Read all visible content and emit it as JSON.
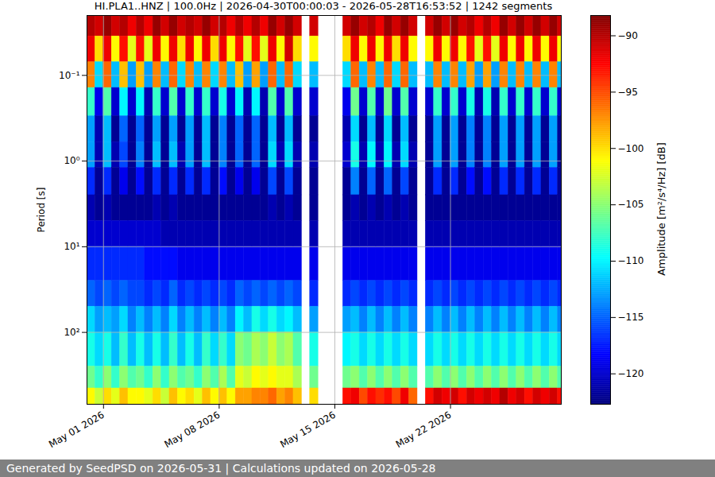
{
  "chart_data": {
    "type": "heatmap",
    "title": "HI.PLA1..HNZ | 100.0Hz | 2026-04-30T00:00:03 - 2026-05-28T16:53:52 | 1242 segments",
    "footer": "Generated by SeedPSD on 2026-05-31 | Calculations updated on 2026-05-28",
    "y_label": "Period [s]",
    "log": "y",
    "grid": true,
    "xlim": [
      "2026-04-30T00:00:03Z",
      "2026-05-28T16:53:52Z"
    ],
    "xticks": [
      {
        "value": "2026-05-01T00:00Z",
        "label": "May 01 2026"
      },
      {
        "value": "2026-05-08T00:00Z",
        "label": "May 08 2026"
      },
      {
        "value": "2026-05-15T00:00Z",
        "label": "May 15 2026"
      },
      {
        "value": "2026-05-22T00:00Z",
        "label": "May 22 2026"
      }
    ],
    "ylim": [
      690,
      0.02
    ],
    "yticks": [
      {
        "value": 0.1,
        "label": "10⁻¹"
      },
      {
        "value": 1,
        "label": "10⁰"
      },
      {
        "value": 10,
        "label": "10¹"
      },
      {
        "value": 100,
        "label": "10²"
      }
    ],
    "periods": [
      0.02,
      0.035,
      0.07,
      0.14,
      0.3,
      0.6,
      1.2,
      2.5,
      5,
      10,
      25,
      50,
      100,
      250,
      450,
      690
    ],
    "x": [
      "2026-04-30T00:00Z",
      "2026-04-30T12:00Z",
      "2026-05-01T00:00Z",
      "2026-05-01T12:00Z",
      "2026-05-02T00:00Z",
      "2026-05-02T12:00Z",
      "2026-05-03T00:00Z",
      "2026-05-03T12:00Z",
      "2026-05-04T00:00Z",
      "2026-05-04T12:00Z",
      "2026-05-05T00:00Z",
      "2026-05-05T12:00Z",
      "2026-05-06T00:00Z",
      "2026-05-06T12:00Z",
      "2026-05-07T00:00Z",
      "2026-05-07T12:00Z",
      "2026-05-08T00:00Z",
      "2026-05-08T12:00Z",
      "2026-05-09T00:00Z",
      "2026-05-09T12:00Z",
      "2026-05-10T00:00Z",
      "2026-05-10T12:00Z",
      "2026-05-11T00:00Z",
      "2026-05-11T12:00Z",
      "2026-05-12T00:00Z",
      "2026-05-12T12:00Z",
      "2026-05-13T00:00Z",
      "2026-05-13T12:00Z",
      "2026-05-14T00:00Z",
      "2026-05-14T12:00Z",
      "2026-05-15T00:00Z",
      "2026-05-15T12:00Z",
      "2026-05-16T00:00Z",
      "2026-05-16T12:00Z",
      "2026-05-17T00:00Z",
      "2026-05-17T12:00Z",
      "2026-05-18T00:00Z",
      "2026-05-18T12:00Z",
      "2026-05-19T00:00Z",
      "2026-05-19T12:00Z",
      "2026-05-20T00:00Z",
      "2026-05-20T12:00Z",
      "2026-05-21T00:00Z",
      "2026-05-21T12:00Z",
      "2026-05-22T00:00Z",
      "2026-05-22T12:00Z",
      "2026-05-23T00:00Z",
      "2026-05-23T12:00Z",
      "2026-05-24T00:00Z",
      "2026-05-24T12:00Z",
      "2026-05-25T00:00Z",
      "2026-05-25T12:00Z",
      "2026-05-26T00:00Z",
      "2026-05-26T12:00Z",
      "2026-05-27T00:00Z",
      "2026-05-27T12:00Z",
      "2026-05-28T00:00Z",
      "2026-05-28T12:00Z"
    ],
    "values": [
      [
        -90,
        -92,
        -97,
        -108,
        -113,
        -113,
        -117,
        -121,
        -120,
        -117,
        -115,
        -111,
        -109,
        -106,
        -101
      ],
      [
        -91,
        -100,
        -111,
        -119,
        -121,
        -121,
        -122,
        -122,
        -120,
        -117,
        -116,
        -113,
        -111,
        -108,
        -103
      ],
      [
        -89,
        -92,
        -96,
        -107,
        -112,
        -112,
        -117,
        -121,
        -120,
        -117,
        -115,
        -112,
        -109,
        -105,
        -100
      ],
      [
        -91,
        -101,
        -112,
        -120,
        -122,
        -121,
        -122,
        -122,
        -120,
        -117,
        -116,
        -113,
        -112,
        -108,
        -102
      ],
      [
        -90,
        -93,
        -99,
        -110,
        -115,
        -116,
        -119,
        -122,
        -120,
        -117,
        -115,
        -111,
        -108,
        -105,
        -99
      ],
      [
        -92,
        -102,
        -113,
        -120,
        -122,
        -122,
        -122,
        -122,
        -120,
        -117,
        -116,
        -114,
        -112,
        -107,
        -101
      ],
      [
        -90,
        -93,
        -99,
        -110,
        -115,
        -114,
        -118,
        -122,
        -120,
        -117,
        -116,
        -112,
        -109,
        -106,
        -101
      ],
      [
        -92,
        -102,
        -113,
        -121,
        -122,
        -122,
        -122,
        -122,
        -120,
        -118,
        -117,
        -114,
        -112,
        -108,
        -102
      ],
      [
        -89,
        -92,
        -97,
        -108,
        -113,
        -112,
        -117,
        -121,
        -120,
        -118,
        -116,
        -112,
        -109,
        -105,
        -100
      ],
      [
        -91,
        -101,
        -112,
        -120,
        -122,
        -122,
        -122,
        -122,
        -121,
        -118,
        -117,
        -114,
        -112,
        -108,
        -103
      ],
      [
        -89,
        -92,
        -96,
        -107,
        -113,
        -112,
        -117,
        -121,
        -121,
        -118,
        -115,
        -111,
        -108,
        -105,
        -99
      ],
      [
        -91,
        -100,
        -111,
        -120,
        -122,
        -121,
        -122,
        -122,
        -121,
        -119,
        -117,
        -114,
        -112,
        -107,
        -101
      ],
      [
        -90,
        -92,
        -97,
        -108,
        -113,
        -113,
        -117,
        -122,
        -121,
        -119,
        -116,
        -112,
        -109,
        -106,
        -100
      ],
      [
        -91,
        -101,
        -112,
        -120,
        -122,
        -122,
        -122,
        -122,
        -121,
        -119,
        -117,
        -114,
        -112,
        -108,
        -102
      ],
      [
        -89,
        -92,
        -97,
        -108,
        -112,
        -112,
        -117,
        -122,
        -121,
        -119,
        -116,
        -112,
        -108,
        -105,
        -99
      ],
      [
        -91,
        -100,
        -111,
        -120,
        -122,
        -122,
        -122,
        -122,
        -121,
        -119,
        -117,
        -114,
        -111,
        -107,
        -101
      ],
      [
        -90,
        -92,
        -97,
        -109,
        -114,
        -114,
        -118,
        -122,
        -121,
        -119,
        -116,
        -112,
        -108,
        -104,
        -99
      ],
      [
        -92,
        -101,
        -112,
        -120,
        -122,
        -122,
        -122,
        -122,
        -121,
        -119,
        -117,
        -114,
        -111,
        -107,
        -101
      ],
      [
        -90,
        -93,
        -99,
        -110,
        -115,
        -115,
        -119,
        -122,
        -121,
        -119,
        -115,
        -110,
        -105,
        -102,
        -98
      ],
      [
        -92,
        -102,
        -113,
        -121,
        -122,
        -122,
        -122,
        -122,
        -121,
        -119,
        -116,
        -112,
        -106,
        -103,
        -98
      ],
      [
        -90,
        -93,
        -98,
        -110,
        -115,
        -115,
        -119,
        -122,
        -121,
        -119,
        -115,
        -109,
        -104,
        -101,
        -97
      ],
      [
        -92,
        -102,
        -113,
        -121,
        -122,
        -122,
        -122,
        -122,
        -121,
        -119,
        -116,
        -111,
        -105,
        -102,
        -97
      ],
      [
        -89,
        -92,
        -96,
        -107,
        -112,
        -111,
        -116,
        -121,
        -121,
        -119,
        -115,
        -109,
        -103,
        -101,
        -96
      ],
      [
        -91,
        -101,
        -112,
        -120,
        -122,
        -121,
        -122,
        -122,
        -121,
        -119,
        -116,
        -111,
        -105,
        -102,
        -98
      ],
      [
        -89,
        -91,
        -96,
        -107,
        -112,
        -111,
        -116,
        -121,
        -121,
        -119,
        -115,
        -110,
        -104,
        -102,
        -97
      ],
      [
        -91,
        -100,
        -111,
        -120,
        -122,
        -121,
        -122,
        -122,
        -121,
        -119,
        -116,
        -112,
        -107,
        -104,
        -99
      ],
      null,
      [
        -91,
        -101,
        -112,
        -120,
        -122,
        -121,
        -122,
        -122,
        -121,
        -119,
        -117,
        -113,
        -109,
        -106,
        -100
      ],
      null,
      null,
      null,
      [
        -91,
        -100,
        -111,
        -119,
        -121,
        -120,
        -122,
        -122,
        -121,
        -119,
        -117,
        -113,
        -110,
        -106,
        -93
      ],
      [
        -89,
        -92,
        -96,
        -106,
        -111,
        -109,
        -114,
        -121,
        -121,
        -119,
        -116,
        -112,
        -109,
        -105,
        -92
      ],
      [
        -91,
        -101,
        -112,
        -120,
        -122,
        -121,
        -122,
        -122,
        -121,
        -119,
        -117,
        -114,
        -111,
        -107,
        -95
      ],
      [
        -90,
        -92,
        -97,
        -107,
        -112,
        -110,
        -115,
        -121,
        -121,
        -119,
        -116,
        -112,
        -109,
        -105,
        -93
      ],
      [
        -92,
        -101,
        -112,
        -120,
        -122,
        -121,
        -122,
        -122,
        -121,
        -119,
        -117,
        -114,
        -111,
        -107,
        -94
      ],
      [
        -89,
        -92,
        -96,
        -106,
        -111,
        -110,
        -115,
        -121,
        -121,
        -119,
        -116,
        -112,
        -109,
        -105,
        -93
      ],
      [
        -91,
        -100,
        -111,
        -120,
        -122,
        -121,
        -122,
        -122,
        -121,
        -119,
        -117,
        -114,
        -111,
        -107,
        -95
      ],
      [
        -89,
        -92,
        -96,
        -107,
        -112,
        -111,
        -116,
        -121,
        -121,
        -119,
        -116,
        -112,
        -109,
        -105,
        -92
      ],
      [
        -91,
        -101,
        -112,
        -120,
        -122,
        -121,
        -122,
        -122,
        -121,
        -119,
        -117,
        -114,
        -111,
        -107,
        -96
      ],
      null,
      [
        -91,
        -101,
        -112,
        -120,
        -122,
        -122,
        -122,
        -122,
        -121,
        -119,
        -117,
        -114,
        -111,
        -107,
        -93
      ],
      [
        -89,
        -92,
        -97,
        -108,
        -113,
        -113,
        -117,
        -122,
        -121,
        -119,
        -116,
        -112,
        -109,
        -105,
        -91
      ],
      [
        -91,
        -101,
        -112,
        -120,
        -122,
        -122,
        -122,
        -122,
        -121,
        -119,
        -117,
        -114,
        -111,
        -107,
        -92
      ],
      [
        -89,
        -92,
        -97,
        -108,
        -113,
        -113,
        -117,
        -122,
        -121,
        -119,
        -116,
        -112,
        -109,
        -105,
        -91
      ],
      [
        -91,
        -101,
        -112,
        -120,
        -122,
        -122,
        -122,
        -122,
        -121,
        -119,
        -117,
        -114,
        -111,
        -107,
        -93
      ],
      [
        -90,
        -93,
        -98,
        -109,
        -114,
        -114,
        -118,
        -122,
        -121,
        -119,
        -116,
        -112,
        -109,
        -105,
        -91
      ],
      [
        -92,
        -102,
        -113,
        -121,
        -122,
        -122,
        -122,
        -122,
        -121,
        -119,
        -117,
        -114,
        -111,
        -107,
        -92
      ],
      [
        -90,
        -93,
        -98,
        -109,
        -114,
        -114,
        -118,
        -122,
        -121,
        -119,
        -116,
        -112,
        -109,
        -105,
        -91
      ],
      [
        -92,
        -102,
        -113,
        -121,
        -122,
        -122,
        -122,
        -122,
        -121,
        -119,
        -117,
        -114,
        -111,
        -107,
        -92
      ],
      [
        -89,
        -92,
        -97,
        -108,
        -113,
        -113,
        -117,
        -122,
        -121,
        -119,
        -116,
        -112,
        -109,
        -105,
        -90
      ],
      [
        -91,
        -101,
        -112,
        -120,
        -122,
        -122,
        -122,
        -122,
        -121,
        -119,
        -117,
        -114,
        -111,
        -107,
        -92
      ],
      [
        -89,
        -92,
        -97,
        -108,
        -113,
        -113,
        -117,
        -122,
        -121,
        -119,
        -116,
        -112,
        -109,
        -105,
        -91
      ],
      [
        -91,
        -101,
        -112,
        -120,
        -122,
        -122,
        -122,
        -122,
        -121,
        -119,
        -117,
        -114,
        -111,
        -107,
        -93
      ],
      [
        -89,
        -92,
        -97,
        -108,
        -113,
        -113,
        -117,
        -122,
        -121,
        -119,
        -116,
        -112,
        -109,
        -105,
        -91
      ],
      [
        -91,
        -101,
        -112,
        -120,
        -122,
        -122,
        -122,
        -122,
        -121,
        -119,
        -117,
        -114,
        -111,
        -107,
        -92
      ],
      [
        -89,
        -92,
        -97,
        -108,
        -113,
        -113,
        -117,
        -122,
        -121,
        -119,
        -116,
        -112,
        -109,
        -105,
        -91
      ],
      [
        -91,
        -101,
        -112,
        -120,
        -122,
        -122,
        -122,
        -122,
        -121,
        -119,
        -117,
        -114,
        -111,
        -107,
        -93
      ]
    ],
    "colorbar_label": "Amplitude [m²/s⁴/Hz] [dB]",
    "colorbar_range": [
      -122.7,
      -88.2
    ],
    "colorbar_ticks": [
      {
        "value": -90,
        "label": "−90"
      },
      {
        "value": -95,
        "label": "−95"
      },
      {
        "value": -100,
        "label": "−100"
      },
      {
        "value": -105,
        "label": "−105"
      },
      {
        "value": -110,
        "label": "−110"
      },
      {
        "value": -115,
        "label": "−115"
      },
      {
        "value": -120,
        "label": "−120"
      }
    ]
  }
}
